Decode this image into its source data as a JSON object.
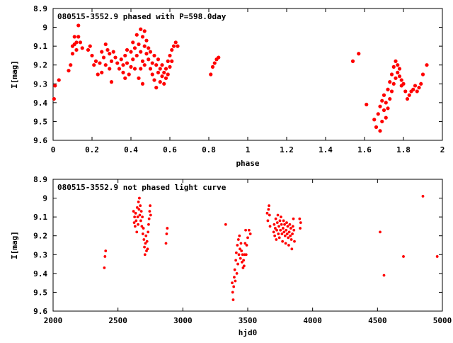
{
  "chart_data": [
    {
      "type": "scatter",
      "title": "080515-3552.9 phased with P=598.0day",
      "xlabel": "phase",
      "ylabel": "I[mag]",
      "xlim": [
        0,
        2
      ],
      "ylim": [
        9.6,
        8.9
      ],
      "y_inverted": true,
      "xticks": [
        "0",
        "0.2",
        "0.4",
        "0.6",
        "0.8",
        "1",
        "1.2",
        "1.4",
        "1.6",
        "1.8",
        "2"
      ],
      "xtick_values": [
        0,
        0.2,
        0.4,
        0.6,
        0.8,
        1,
        1.2,
        1.4,
        1.6,
        1.8,
        2
      ],
      "yticks": [
        "8.9",
        "9",
        "9.1",
        "9.2",
        "9.3",
        "9.4",
        "9.5",
        "9.6"
      ],
      "ytick_values": [
        8.9,
        9.0,
        9.1,
        9.2,
        9.3,
        9.4,
        9.5,
        9.6
      ],
      "grid": false,
      "marker_color": "#ff0000",
      "points": [
        [
          0.005,
          9.38
        ],
        [
          0.01,
          9.31
        ],
        [
          0.03,
          9.28
        ],
        [
          0.08,
          9.23
        ],
        [
          0.09,
          9.2
        ],
        [
          0.1,
          9.14
        ],
        [
          0.1,
          9.1
        ],
        [
          0.11,
          9.09
        ],
        [
          0.11,
          9.05
        ],
        [
          0.12,
          9.08
        ],
        [
          0.12,
          9.12
        ],
        [
          0.13,
          8.99
        ],
        [
          0.13,
          9.05
        ],
        [
          0.14,
          9.08
        ],
        [
          0.15,
          9.11
        ],
        [
          0.18,
          9.12
        ],
        [
          0.19,
          9.1
        ],
        [
          0.2,
          9.15
        ],
        [
          0.21,
          9.2
        ],
        [
          0.22,
          9.18
        ],
        [
          0.23,
          9.25
        ],
        [
          0.24,
          9.19
        ],
        [
          0.25,
          9.24
        ],
        [
          0.25,
          9.13
        ],
        [
          0.26,
          9.16
        ],
        [
          0.27,
          9.2
        ],
        [
          0.27,
          9.09
        ],
        [
          0.28,
          9.12
        ],
        [
          0.29,
          9.22
        ],
        [
          0.29,
          9.14
        ],
        [
          0.3,
          9.18
        ],
        [
          0.3,
          9.29
        ],
        [
          0.31,
          9.13
        ],
        [
          0.32,
          9.16
        ],
        [
          0.33,
          9.19
        ],
        [
          0.34,
          9.22
        ],
        [
          0.35,
          9.17
        ],
        [
          0.36,
          9.24
        ],
        [
          0.36,
          9.2
        ],
        [
          0.37,
          9.27
        ],
        [
          0.37,
          9.15
        ],
        [
          0.38,
          9.12
        ],
        [
          0.38,
          9.19
        ],
        [
          0.39,
          9.25
        ],
        [
          0.4,
          9.21
        ],
        [
          0.4,
          9.13
        ],
        [
          0.41,
          9.08
        ],
        [
          0.41,
          9.17
        ],
        [
          0.42,
          9.11
        ],
        [
          0.42,
          9.22
        ],
        [
          0.43,
          9.15
        ],
        [
          0.43,
          9.04
        ],
        [
          0.44,
          9.27
        ],
        [
          0.44,
          9.09
        ],
        [
          0.45,
          9.01
        ],
        [
          0.45,
          9.13
        ],
        [
          0.45,
          9.22
        ],
        [
          0.46,
          9.05
        ],
        [
          0.46,
          9.18
        ],
        [
          0.46,
          9.3
        ],
        [
          0.47,
          9.02
        ],
        [
          0.47,
          9.1
        ],
        [
          0.47,
          9.2
        ],
        [
          0.48,
          9.07
        ],
        [
          0.48,
          9.14
        ],
        [
          0.49,
          9.11
        ],
        [
          0.49,
          9.17
        ],
        [
          0.5,
          9.13
        ],
        [
          0.5,
          9.22
        ],
        [
          0.51,
          9.19
        ],
        [
          0.51,
          9.25
        ],
        [
          0.52,
          9.15
        ],
        [
          0.52,
          9.28
        ],
        [
          0.53,
          9.2
        ],
        [
          0.53,
          9.32
        ],
        [
          0.54,
          9.24
        ],
        [
          0.54,
          9.17
        ],
        [
          0.55,
          9.29
        ],
        [
          0.55,
          9.22
        ],
        [
          0.56,
          9.26
        ],
        [
          0.56,
          9.2
        ],
        [
          0.57,
          9.24
        ],
        [
          0.57,
          9.3
        ],
        [
          0.58,
          9.22
        ],
        [
          0.58,
          9.27
        ],
        [
          0.59,
          9.25
        ],
        [
          0.59,
          9.18
        ],
        [
          0.6,
          9.21
        ],
        [
          0.6,
          9.15
        ],
        [
          0.61,
          9.18
        ],
        [
          0.61,
          9.12
        ],
        [
          0.62,
          9.1
        ],
        [
          0.63,
          9.08
        ],
        [
          0.64,
          9.1
        ],
        [
          0.81,
          9.25
        ],
        [
          0.82,
          9.21
        ],
        [
          0.83,
          9.19
        ],
        [
          0.84,
          9.17
        ],
        [
          0.85,
          9.16
        ],
        [
          1.54,
          9.18
        ],
        [
          1.57,
          9.14
        ],
        [
          1.61,
          9.41
        ],
        [
          1.65,
          9.49
        ],
        [
          1.66,
          9.53
        ],
        [
          1.67,
          9.46
        ],
        [
          1.68,
          9.42
        ],
        [
          1.68,
          9.55
        ],
        [
          1.69,
          9.39
        ],
        [
          1.69,
          9.5
        ],
        [
          1.7,
          9.44
        ],
        [
          1.7,
          9.36
        ],
        [
          1.71,
          9.48
        ],
        [
          1.71,
          9.4
        ],
        [
          1.72,
          9.33
        ],
        [
          1.72,
          9.43
        ],
        [
          1.73,
          9.29
        ],
        [
          1.73,
          9.38
        ],
        [
          1.74,
          9.25
        ],
        [
          1.74,
          9.34
        ],
        [
          1.75,
          9.21
        ],
        [
          1.75,
          9.3
        ],
        [
          1.76,
          9.18
        ],
        [
          1.76,
          9.27
        ],
        [
          1.77,
          9.2
        ],
        [
          1.77,
          9.24
        ],
        [
          1.78,
          9.22
        ],
        [
          1.78,
          9.26
        ],
        [
          1.79,
          9.28
        ],
        [
          1.79,
          9.31
        ],
        [
          1.8,
          9.3
        ],
        [
          1.81,
          9.34
        ],
        [
          1.82,
          9.38
        ],
        [
          1.83,
          9.36
        ],
        [
          1.84,
          9.34
        ],
        [
          1.85,
          9.33
        ],
        [
          1.86,
          9.31
        ],
        [
          1.87,
          9.34
        ],
        [
          1.88,
          9.32
        ],
        [
          1.89,
          9.3
        ],
        [
          1.9,
          9.25
        ],
        [
          1.92,
          9.2
        ]
      ]
    },
    {
      "type": "scatter",
      "title": "080515-3552.9 not phased light curve",
      "xlabel": "hjd0",
      "ylabel": "I[mag]",
      "xlim": [
        2000,
        5000
      ],
      "ylim": [
        9.6,
        8.9
      ],
      "y_inverted": true,
      "xticks": [
        "2000",
        "2500",
        "3000",
        "3500",
        "4000",
        "4500",
        "5000"
      ],
      "xtick_values": [
        2000,
        2500,
        3000,
        3500,
        4000,
        4500,
        5000
      ],
      "yticks": [
        "8.9",
        "9",
        "9.1",
        "9.2",
        "9.3",
        "9.4",
        "9.5",
        "9.6"
      ],
      "ytick_values": [
        8.9,
        9.0,
        9.1,
        9.2,
        9.3,
        9.4,
        9.5,
        9.6
      ],
      "grid": false,
      "marker_color": "#ff0000",
      "points": [
        [
          2395,
          9.37
        ],
        [
          2400,
          9.31
        ],
        [
          2405,
          9.28
        ],
        [
          2620,
          9.07
        ],
        [
          2625,
          9.13
        ],
        [
          2628,
          9.1
        ],
        [
          2632,
          9.15
        ],
        [
          2636,
          9.08
        ],
        [
          2640,
          9.12
        ],
        [
          2645,
          9.18
        ],
        [
          2648,
          9.05
        ],
        [
          2652,
          9.1
        ],
        [
          2655,
          9.14
        ],
        [
          2658,
          9.02
        ],
        [
          2662,
          9.06
        ],
        [
          2665,
          9.0
        ],
        [
          2668,
          9.09
        ],
        [
          2672,
          9.04
        ],
        [
          2676,
          9.12
        ],
        [
          2680,
          9.07
        ],
        [
          2684,
          9.15
        ],
        [
          2688,
          9.1
        ],
        [
          2692,
          9.19
        ],
        [
          2696,
          9.16
        ],
        [
          2700,
          9.22
        ],
        [
          2704,
          9.26
        ],
        [
          2708,
          9.3
        ],
        [
          2712,
          9.24
        ],
        [
          2716,
          9.2
        ],
        [
          2720,
          9.28
        ],
        [
          2724,
          9.23
        ],
        [
          2728,
          9.27
        ],
        [
          2732,
          9.18
        ],
        [
          2736,
          9.14
        ],
        [
          2740,
          9.11
        ],
        [
          2744,
          9.07
        ],
        [
          2748,
          9.04
        ],
        [
          2752,
          9.09
        ],
        [
          2870,
          9.24
        ],
        [
          2875,
          9.19
        ],
        [
          2880,
          9.16
        ],
        [
          3330,
          9.14
        ],
        [
          3380,
          9.45
        ],
        [
          3384,
          9.5
        ],
        [
          3388,
          9.54
        ],
        [
          3392,
          9.47
        ],
        [
          3396,
          9.42
        ],
        [
          3400,
          9.38
        ],
        [
          3404,
          9.44
        ],
        [
          3408,
          9.33
        ],
        [
          3412,
          9.29
        ],
        [
          3416,
          9.4
        ],
        [
          3420,
          9.25
        ],
        [
          3424,
          9.35
        ],
        [
          3428,
          9.22
        ],
        [
          3432,
          9.3
        ],
        [
          3436,
          9.2
        ],
        [
          3440,
          9.27
        ],
        [
          3444,
          9.32
        ],
        [
          3448,
          9.24
        ],
        [
          3452,
          9.28
        ],
        [
          3456,
          9.34
        ],
        [
          3460,
          9.3
        ],
        [
          3464,
          9.37
        ],
        [
          3468,
          9.33
        ],
        [
          3472,
          9.36
        ],
        [
          3476,
          9.3
        ],
        [
          3480,
          9.24
        ],
        [
          3484,
          9.17
        ],
        [
          3488,
          9.3
        ],
        [
          3492,
          9.25
        ],
        [
          3500,
          9.21
        ],
        [
          3510,
          9.17
        ],
        [
          3520,
          9.19
        ],
        [
          3650,
          9.08
        ],
        [
          3655,
          9.12
        ],
        [
          3660,
          9.06
        ],
        [
          3664,
          9.04
        ],
        [
          3668,
          9.09
        ],
        [
          3672,
          9.15
        ],
        [
          3700,
          9.18
        ],
        [
          3704,
          9.14
        ],
        [
          3708,
          9.2
        ],
        [
          3712,
          9.16
        ],
        [
          3716,
          9.11
        ],
        [
          3720,
          9.22
        ],
        [
          3724,
          9.17
        ],
        [
          3728,
          9.13
        ],
        [
          3732,
          9.09
        ],
        [
          3736,
          9.19
        ],
        [
          3740,
          9.15
        ],
        [
          3744,
          9.21
        ],
        [
          3748,
          9.12
        ],
        [
          3752,
          9.17
        ],
        [
          3756,
          9.1
        ],
        [
          3760,
          9.14
        ],
        [
          3764,
          9.19
        ],
        [
          3768,
          9.23
        ],
        [
          3772,
          9.16
        ],
        [
          3776,
          9.12
        ],
        [
          3780,
          9.18
        ],
        [
          3784,
          9.14
        ],
        [
          3788,
          9.2
        ],
        [
          3792,
          9.24
        ],
        [
          3796,
          9.17
        ],
        [
          3800,
          9.13
        ],
        [
          3804,
          9.19
        ],
        [
          3808,
          9.15
        ],
        [
          3812,
          9.21
        ],
        [
          3816,
          9.25
        ],
        [
          3820,
          9.18
        ],
        [
          3824,
          9.14
        ],
        [
          3828,
          9.2
        ],
        [
          3832,
          9.16
        ],
        [
          3836,
          9.22
        ],
        [
          3840,
          9.27
        ],
        [
          3844,
          9.19
        ],
        [
          3848,
          9.15
        ],
        [
          3852,
          9.11
        ],
        [
          3856,
          9.17
        ],
        [
          3860,
          9.23
        ],
        [
          3900,
          9.11
        ],
        [
          3904,
          9.16
        ],
        [
          3908,
          9.13
        ],
        [
          4520,
          9.18
        ],
        [
          4550,
          9.41
        ],
        [
          4700,
          9.31
        ],
        [
          4850,
          8.99
        ],
        [
          4960,
          9.31
        ]
      ]
    }
  ]
}
